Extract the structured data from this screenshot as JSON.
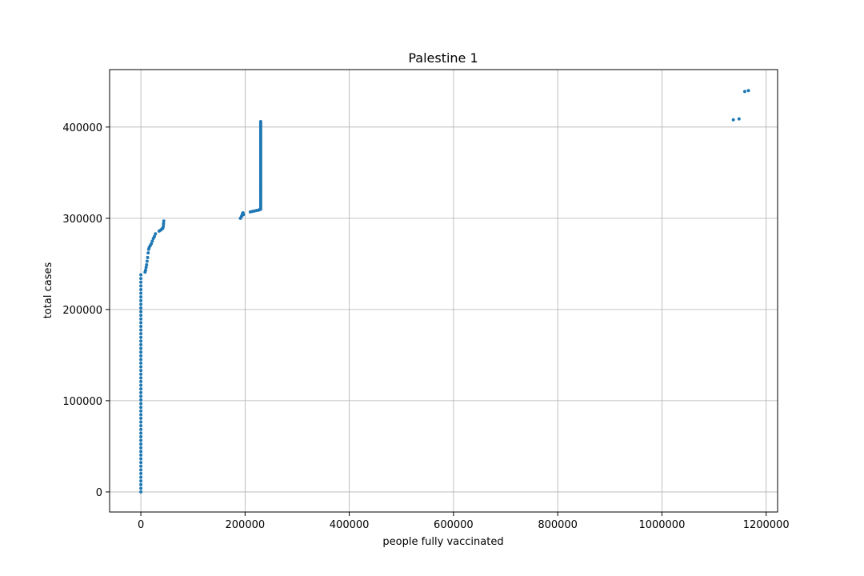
{
  "chart_data": {
    "type": "scatter",
    "title": "Palestine 1",
    "xlabel": "people fully vaccinated",
    "ylabel": "total cases",
    "xlim": [
      -60000,
      1222000
    ],
    "ylim": [
      -22000,
      463000
    ],
    "xticks": [
      0,
      200000,
      400000,
      600000,
      800000,
      1000000,
      1200000
    ],
    "xtick_labels": [
      "0",
      "200000",
      "400000",
      "600000",
      "800000",
      "1000000",
      "1200000"
    ],
    "yticks": [
      0,
      100000,
      200000,
      300000,
      400000
    ],
    "ytick_labels": [
      "0",
      "100000",
      "200000",
      "300000",
      "400000"
    ],
    "grid": true,
    "legend": "none",
    "marker_color": "#1f77b4",
    "segments": [
      {
        "x": 0,
        "y_start": 0,
        "y_end": 238000,
        "count": 60
      },
      {
        "x": 230000,
        "y_start": 310000,
        "y_end": 406000,
        "count": 50
      }
    ],
    "points": [
      [
        8000,
        241000
      ],
      [
        9000,
        243000
      ],
      [
        10000,
        246000
      ],
      [
        11000,
        249000
      ],
      [
        12000,
        253000
      ],
      [
        13000,
        257000
      ],
      [
        14000,
        262000
      ],
      [
        15000,
        266000
      ],
      [
        16000,
        268000
      ],
      [
        18000,
        270000
      ],
      [
        20000,
        272000
      ],
      [
        22000,
        275000
      ],
      [
        24000,
        278000
      ],
      [
        26000,
        280000
      ],
      [
        28000,
        283000
      ],
      [
        35000,
        286000
      ],
      [
        38000,
        287000
      ],
      [
        40000,
        288000
      ],
      [
        42000,
        289000
      ],
      [
        43000,
        291000
      ],
      [
        43500,
        294000
      ],
      [
        44000,
        297000
      ],
      [
        191000,
        300000
      ],
      [
        193000,
        302000
      ],
      [
        194000,
        303000
      ],
      [
        195000,
        305000
      ],
      [
        196000,
        306000
      ],
      [
        197000,
        304000
      ],
      [
        210000,
        307000
      ],
      [
        214000,
        307500
      ],
      [
        218000,
        308000
      ],
      [
        222000,
        308500
      ],
      [
        226000,
        309000
      ],
      [
        228000,
        309500
      ],
      [
        229000,
        310000
      ],
      [
        1137000,
        408000
      ],
      [
        1148000,
        409000
      ],
      [
        1159000,
        439000
      ],
      [
        1166000,
        440000
      ]
    ]
  }
}
